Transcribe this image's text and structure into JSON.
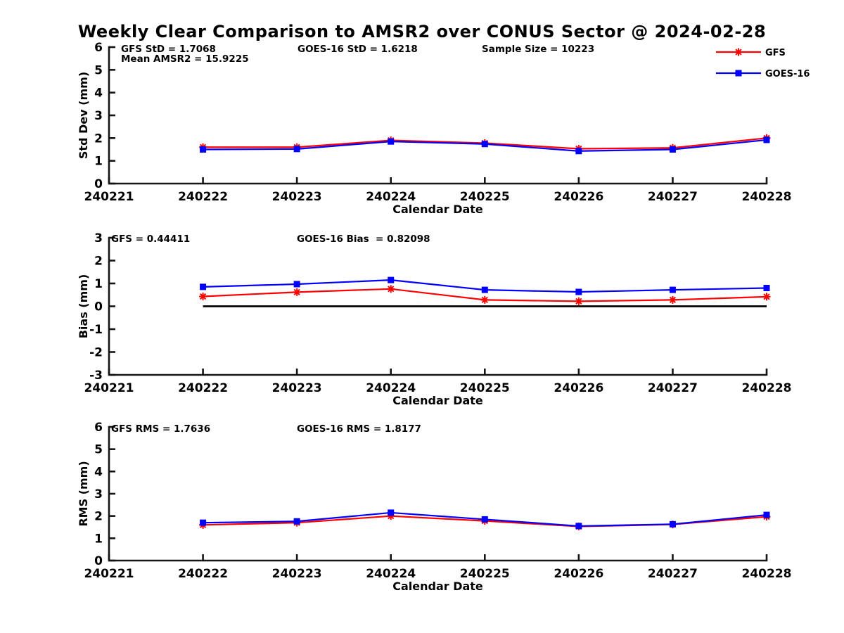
{
  "title": "Weekly Clear Comparison to AMSR2 over CONUS Sector @ 2024-02-28",
  "legend": {
    "items": [
      {
        "label": "GFS",
        "color": "#ff0000",
        "marker": "asterisk"
      },
      {
        "label": "GOES-16",
        "color": "#0000ff",
        "marker": "square"
      }
    ]
  },
  "colors": {
    "axis": "#151515",
    "text": "#000000",
    "zero_line": "#000000",
    "gfs": "#ff0000",
    "goes16": "#0000ff"
  },
  "chart_data": [
    {
      "type": "line",
      "ylabel": "Std Dev (mm)",
      "xlabel": "Calendar Date",
      "ylim": [
        0,
        6
      ],
      "yticks": [
        0,
        1,
        2,
        3,
        4,
        5,
        6
      ],
      "x_ticks": [
        "240221",
        "240222",
        "240223",
        "240224",
        "240225",
        "240226",
        "240227",
        "240228"
      ],
      "x_data": [
        "240222",
        "240223",
        "240224",
        "240225",
        "240226",
        "240227",
        "240228"
      ],
      "series": [
        {
          "name": "GFS",
          "color": "#ff0000",
          "marker": "asterisk",
          "values": [
            1.6,
            1.6,
            1.9,
            1.78,
            1.53,
            1.57,
            2.0
          ]
        },
        {
          "name": "GOES-16",
          "color": "#0000ff",
          "marker": "square",
          "values": [
            1.5,
            1.52,
            1.85,
            1.74,
            1.43,
            1.5,
            1.92
          ]
        }
      ],
      "annotations": [
        "GFS StD = 1.7068",
        "GOES-16 StD = 1.6218",
        "Sample Size = 10223",
        "Mean AMSR2 = 15.9225"
      ],
      "zero_line": false,
      "grid": false,
      "legend_position": "top-right-outside"
    },
    {
      "type": "line",
      "ylabel": "Bias (mm)",
      "xlabel": "Calendar Date",
      "ylim": [
        -3,
        3
      ],
      "yticks": [
        -3,
        -2,
        -1,
        0,
        1,
        2,
        3
      ],
      "x_ticks": [
        "240221",
        "240222",
        "240223",
        "240224",
        "240225",
        "240226",
        "240227",
        "240228"
      ],
      "x_data": [
        "240222",
        "240223",
        "240224",
        "240225",
        "240226",
        "240227",
        "240228"
      ],
      "series": [
        {
          "name": "GFS",
          "color": "#ff0000",
          "marker": "asterisk",
          "values": [
            0.43,
            0.62,
            0.76,
            0.28,
            0.22,
            0.28,
            0.42
          ]
        },
        {
          "name": "GOES-16",
          "color": "#0000ff",
          "marker": "square",
          "values": [
            0.85,
            0.97,
            1.15,
            0.72,
            0.63,
            0.72,
            0.8
          ]
        }
      ],
      "annotations": [
        "GFS = 0.44411",
        "GOES-16 Bias  = 0.82098"
      ],
      "zero_line": true,
      "grid": false
    },
    {
      "type": "line",
      "ylabel": "RMS (mm)",
      "xlabel": "Calendar Date",
      "ylim": [
        0,
        6
      ],
      "yticks": [
        0,
        1,
        2,
        3,
        4,
        5,
        6
      ],
      "x_ticks": [
        "240221",
        "240222",
        "240223",
        "240224",
        "240225",
        "240226",
        "240227",
        "240228"
      ],
      "x_data": [
        "240222",
        "240223",
        "240224",
        "240225",
        "240226",
        "240227",
        "240228"
      ],
      "series": [
        {
          "name": "GFS",
          "color": "#ff0000",
          "marker": "asterisk",
          "values": [
            1.6,
            1.7,
            2.0,
            1.78,
            1.53,
            1.62,
            1.97
          ]
        },
        {
          "name": "GOES-16",
          "color": "#0000ff",
          "marker": "square",
          "values": [
            1.7,
            1.76,
            2.15,
            1.85,
            1.55,
            1.63,
            2.05
          ]
        }
      ],
      "annotations": [
        "GFS RMS = 1.7636",
        "GOES-16 RMS = 1.8177"
      ],
      "zero_line": false,
      "grid": false
    }
  ]
}
